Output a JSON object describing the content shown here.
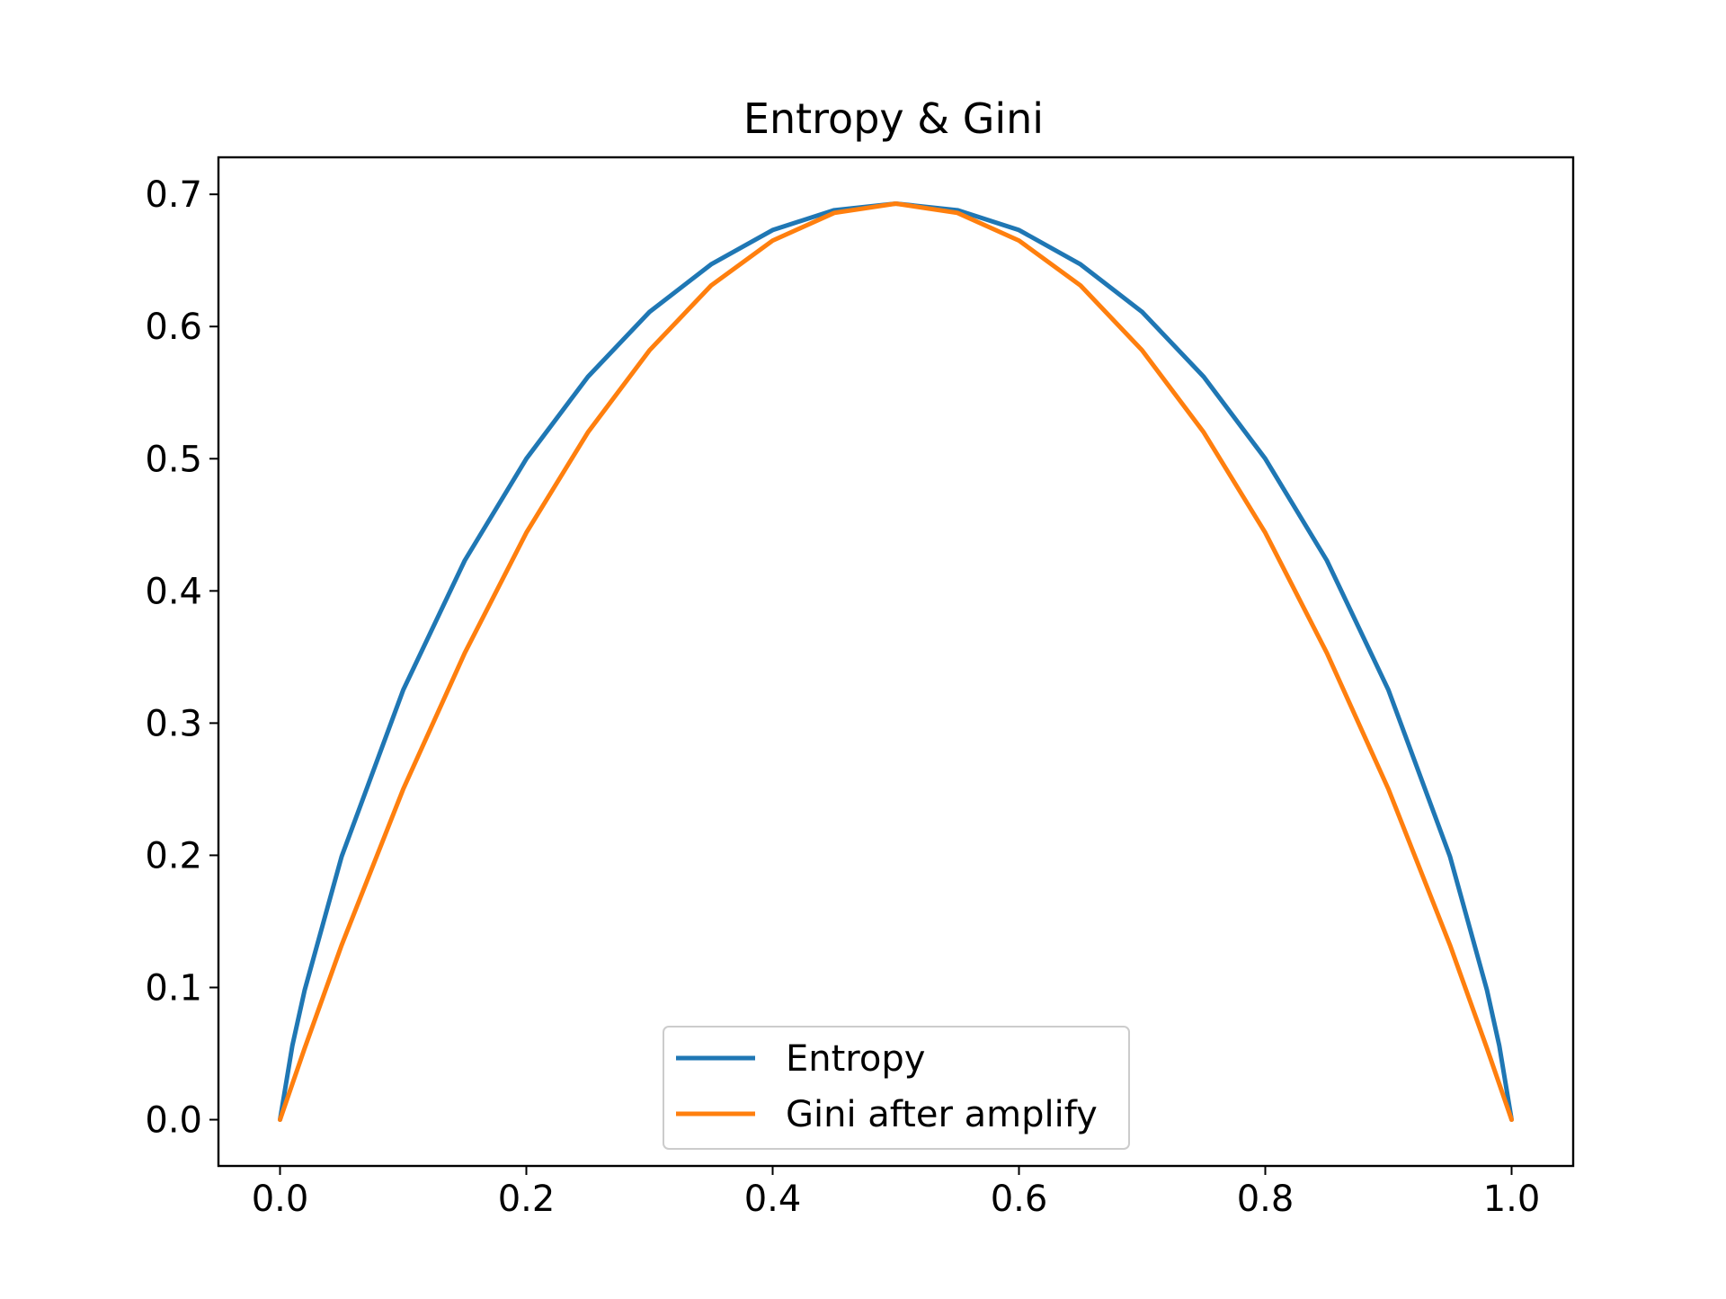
{
  "chart_data": {
    "type": "line",
    "title": "Entropy & Gini",
    "xlabel": "",
    "ylabel": "",
    "xlim": [
      -0.05,
      1.05
    ],
    "ylim": [
      -0.035,
      0.728
    ],
    "xticks": [
      0.0,
      0.2,
      0.4,
      0.6,
      0.8,
      1.0
    ],
    "xtick_labels": [
      "0.0",
      "0.2",
      "0.4",
      "0.6",
      "0.8",
      "1.0"
    ],
    "yticks": [
      0.0,
      0.1,
      0.2,
      0.3,
      0.4,
      0.5,
      0.6,
      0.7
    ],
    "ytick_labels": [
      "0.0",
      "0.1",
      "0.2",
      "0.3",
      "0.4",
      "0.5",
      "0.6",
      "0.7"
    ],
    "grid": false,
    "legend_position": "lower-center",
    "x": [
      0.0,
      0.01,
      0.02,
      0.05,
      0.1,
      0.15,
      0.2,
      0.25,
      0.3,
      0.35,
      0.4,
      0.45,
      0.5,
      0.55,
      0.6,
      0.65,
      0.7,
      0.75,
      0.8,
      0.85,
      0.9,
      0.95,
      0.98,
      0.99,
      1.0
    ],
    "series": [
      {
        "name": "Entropy",
        "color": "#1f77b4",
        "values": [
          0.0,
          0.056,
          0.098,
          0.199,
          0.325,
          0.423,
          0.5,
          0.562,
          0.611,
          0.647,
          0.673,
          0.688,
          0.693,
          0.688,
          0.673,
          0.647,
          0.611,
          0.562,
          0.5,
          0.423,
          0.325,
          0.199,
          0.098,
          0.056,
          0.0
        ]
      },
      {
        "name": "Gini after amplify",
        "color": "#ff7f0e",
        "values": [
          0.0,
          0.027,
          0.054,
          0.132,
          0.25,
          0.353,
          0.444,
          0.52,
          0.582,
          0.631,
          0.665,
          0.686,
          0.693,
          0.686,
          0.665,
          0.631,
          0.582,
          0.52,
          0.444,
          0.353,
          0.25,
          0.132,
          0.054,
          0.027,
          0.0
        ]
      }
    ]
  }
}
